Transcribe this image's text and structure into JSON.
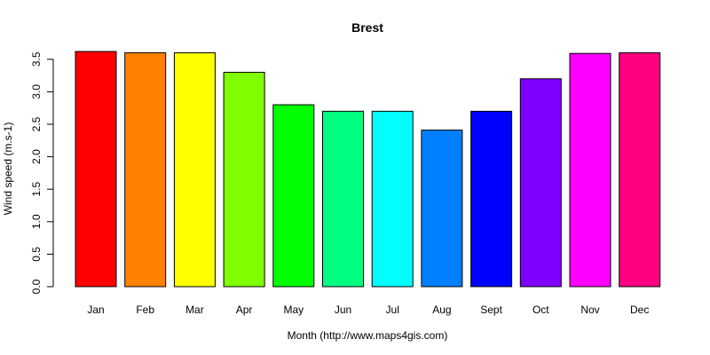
{
  "chart_data": {
    "type": "bar",
    "title": "Brest",
    "xlabel": "Month (http://www.maps4gis.com)",
    "ylabel": "Wind speed (m.s-1)",
    "categories": [
      "Jan",
      "Feb",
      "Mar",
      "Apr",
      "May",
      "Jun",
      "Jul",
      "Aug",
      "Sept",
      "Oct",
      "Nov",
      "Dec"
    ],
    "values": [
      3.62,
      3.6,
      3.6,
      3.3,
      2.8,
      2.7,
      2.7,
      2.41,
      2.7,
      3.2,
      3.59,
      3.6
    ],
    "colors": [
      "#FF0000",
      "#FF8000",
      "#FFFF00",
      "#80FF00",
      "#00FF00",
      "#00FF80",
      "#00FFFF",
      "#0080FF",
      "#0000FF",
      "#8000FF",
      "#FF00FF",
      "#FF0080"
    ],
    "yticks": [
      0.0,
      0.5,
      1.0,
      1.5,
      2.0,
      2.5,
      3.0,
      3.5
    ],
    "ytick_labels": [
      "0.0",
      "0.5",
      "1.0",
      "1.5",
      "2.0",
      "2.5",
      "3.0",
      "3.5"
    ],
    "ylim": [
      0,
      3.62
    ],
    "grid": false,
    "legend": "none"
  }
}
